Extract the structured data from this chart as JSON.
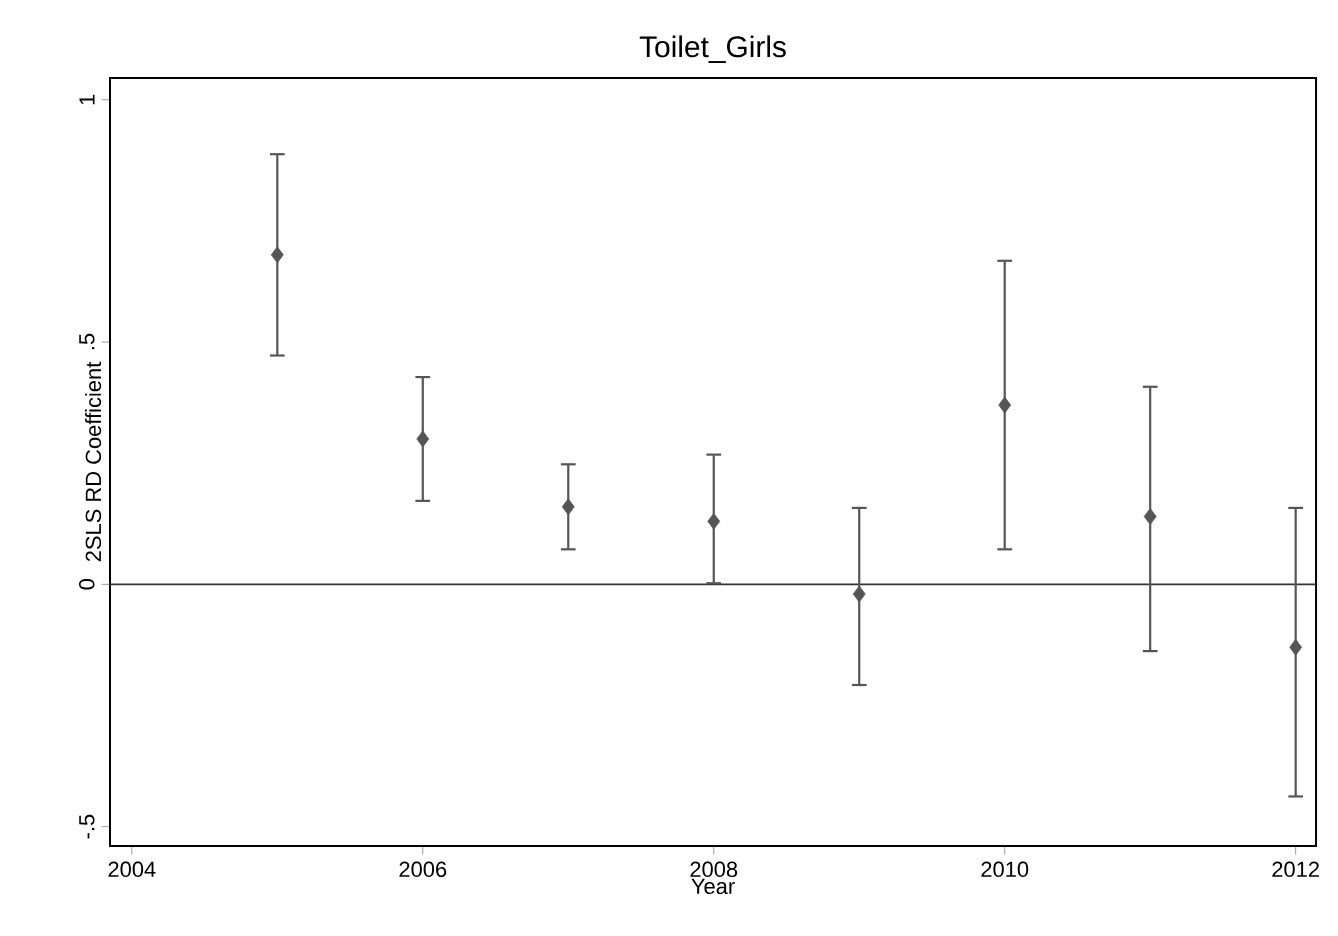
{
  "chart_data": {
    "type": "scatter",
    "title": "Toilet_Girls",
    "xlabel": "Year",
    "ylabel": "2SLS RD Coefficient",
    "x": [
      2005,
      2006,
      2007,
      2008,
      2009,
      2010,
      2011,
      2012
    ],
    "values": [
      0.68,
      0.3,
      0.16,
      0.13,
      -0.02,
      0.37,
      0.14,
      -0.13
    ],
    "errors": [
      [
        0.47,
        0.89
      ],
      [
        0.17,
        0.43
      ],
      [
        0.07,
        0.25
      ],
      [
        0.0,
        0.27
      ],
      [
        -0.21,
        0.16
      ],
      [
        0.07,
        0.67
      ],
      [
        -0.14,
        0.41
      ],
      [
        -0.44,
        0.16
      ]
    ],
    "color": "#555555",
    "marker": "diamond",
    "xlim": [
      2003.85,
      2012.14
    ],
    "ylim": [
      -0.54,
      1.045
    ],
    "xticks": [
      2004,
      2006,
      2008,
      2010,
      2012
    ],
    "yticks": [
      {
        "value": -0.5,
        "label": "-.5"
      },
      {
        "value": 0,
        "label": "0"
      },
      {
        "value": 0.5,
        "label": ".5"
      },
      {
        "value": 1,
        "label": "1"
      }
    ],
    "ref_lines": [
      {
        "axis": "y",
        "value": 0,
        "color": "#333333"
      }
    ],
    "grid": false
  }
}
